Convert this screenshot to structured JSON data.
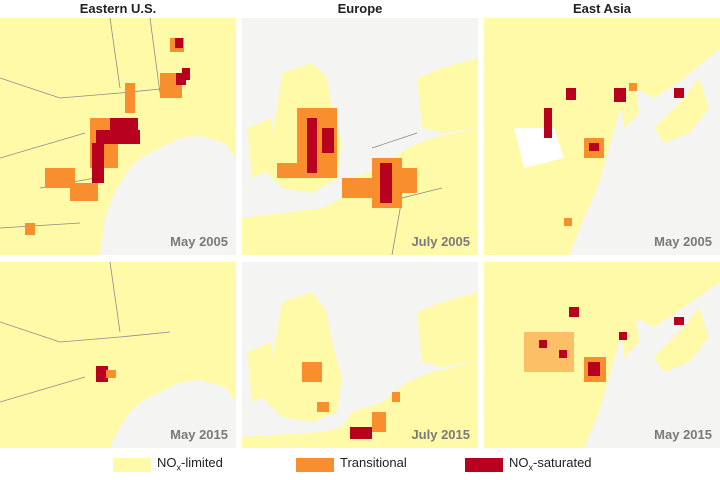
{
  "columns": [
    {
      "title": "Eastern U.S."
    },
    {
      "title": "Europe"
    },
    {
      "title": "East Asia"
    }
  ],
  "panels": [
    {
      "region": "Eastern U.S.",
      "date": "May 2005"
    },
    {
      "region": "Europe",
      "date": "July 2005"
    },
    {
      "region": "East Asia",
      "date": "May 2005"
    },
    {
      "region": "Eastern U.S.",
      "date": "May 2015"
    },
    {
      "region": "Europe",
      "date": "July 2015"
    },
    {
      "region": "East Asia",
      "date": "May 2015"
    }
  ],
  "legend": {
    "limited": {
      "prefix": "NO",
      "sub": "x",
      "suffix": "-limited",
      "color": "#fffaa8"
    },
    "transitional": {
      "label": "Transitional",
      "color": "#f98e2f"
    },
    "saturated": {
      "prefix": "NO",
      "sub": "x",
      "suffix": "-saturated",
      "color": "#b8001f"
    }
  },
  "colors": {
    "water": "#f4f4f2",
    "land_limited": "#fffaa8",
    "transitional": "#f98e2f",
    "saturated": "#b8001f",
    "border": "#8a8a8a"
  }
}
